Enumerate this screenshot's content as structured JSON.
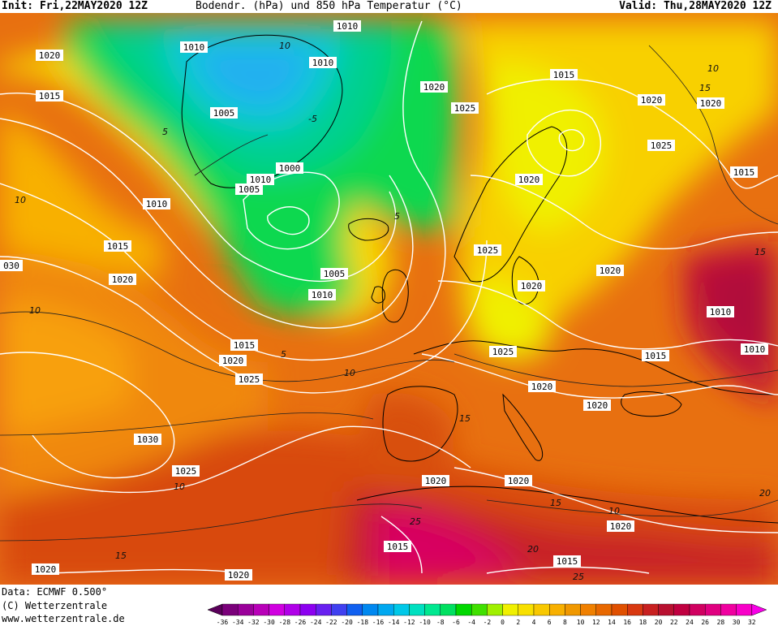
{
  "header": {
    "init": "Init: Fri,22MAY2020 12Z",
    "title": "Bodendr. (hPa) und 850 hPa Temperatur (°C)",
    "valid": "Valid: Thu,28MAY2020 12Z"
  },
  "footer": {
    "data_line": "Data: ECMWF  0.500°",
    "copyright": "(C) Wetterzentrale",
    "website": "www.wetterzentrale.de"
  },
  "legend": {
    "ticks": [
      "-36",
      "-34",
      "-32",
      "-30",
      "-28",
      "-26",
      "-24",
      "-22",
      "-20",
      "-18",
      "-16",
      "-14",
      "-12",
      "-10",
      "-8",
      "-6",
      "-4",
      "-2",
      "0",
      "2",
      "4",
      "6",
      "8",
      "10",
      "12",
      "14",
      "16",
      "18",
      "20",
      "22",
      "24",
      "26",
      "28",
      "30",
      "32"
    ],
    "colors": [
      "#5a005a",
      "#7a007a",
      "#9a009a",
      "#b800b8",
      "#d000e0",
      "#b000e8",
      "#8c00f0",
      "#6820f0",
      "#4040f0",
      "#1060f0",
      "#0088f0",
      "#00a8f0",
      "#00c8e8",
      "#00e0c0",
      "#00e890",
      "#00e060",
      "#00d800",
      "#40e000",
      "#a0f000",
      "#f0f000",
      "#f8e000",
      "#f8c800",
      "#f8b000",
      "#f09800",
      "#f08000",
      "#e86800",
      "#e05000",
      "#d83810",
      "#c82020",
      "#b81030",
      "#c00040",
      "#d00060",
      "#e00080",
      "#f000a0",
      "#f800c8",
      "#f800e8"
    ]
  },
  "isobar_labels": [
    {
      "text": "1010"
    },
    {
      "text": "1010"
    },
    {
      "text": "1020"
    },
    {
      "text": "1010"
    },
    {
      "text": "1015"
    },
    {
      "text": "1005"
    },
    {
      "text": "1020"
    },
    {
      "text": "1025"
    },
    {
      "text": "1015"
    },
    {
      "text": "1020"
    },
    {
      "text": "1020"
    },
    {
      "text": "1025"
    },
    {
      "text": "1015"
    },
    {
      "text": "1000"
    },
    {
      "text": "1010"
    },
    {
      "text": "1005"
    },
    {
      "text": "1020"
    },
    {
      "text": "1010"
    },
    {
      "text": "1015"
    },
    {
      "text": "1020"
    },
    {
      "text": "1025"
    },
    {
      "text": "030"
    },
    {
      "text": "1005"
    },
    {
      "text": "1010"
    },
    {
      "text": "1020"
    },
    {
      "text": "1020"
    },
    {
      "text": "1010"
    },
    {
      "text": "1015"
    },
    {
      "text": "1020"
    },
    {
      "text": "1025"
    },
    {
      "text": "1010"
    },
    {
      "text": "1025"
    },
    {
      "text": "1015"
    },
    {
      "text": "1020"
    },
    {
      "text": "1020"
    },
    {
      "text": "1030"
    },
    {
      "text": "1025"
    },
    {
      "text": "1020"
    },
    {
      "text": "1020"
    },
    {
      "text": "1020"
    },
    {
      "text": "1015"
    },
    {
      "text": "1015"
    },
    {
      "text": "1020"
    },
    {
      "text": "1020"
    }
  ],
  "temp_labels": [
    {
      "text": "10"
    },
    {
      "text": "5"
    },
    {
      "text": "10"
    },
    {
      "text": "-5"
    },
    {
      "text": "10"
    },
    {
      "text": "5"
    },
    {
      "text": "10"
    },
    {
      "text": "15"
    },
    {
      "text": "15"
    },
    {
      "text": "5"
    },
    {
      "text": "10"
    },
    {
      "text": "15"
    },
    {
      "text": "15"
    },
    {
      "text": "10"
    },
    {
      "text": "20"
    },
    {
      "text": "25"
    },
    {
      "text": "20"
    },
    {
      "text": "25"
    },
    {
      "text": "15"
    },
    {
      "text": "10"
    }
  ]
}
